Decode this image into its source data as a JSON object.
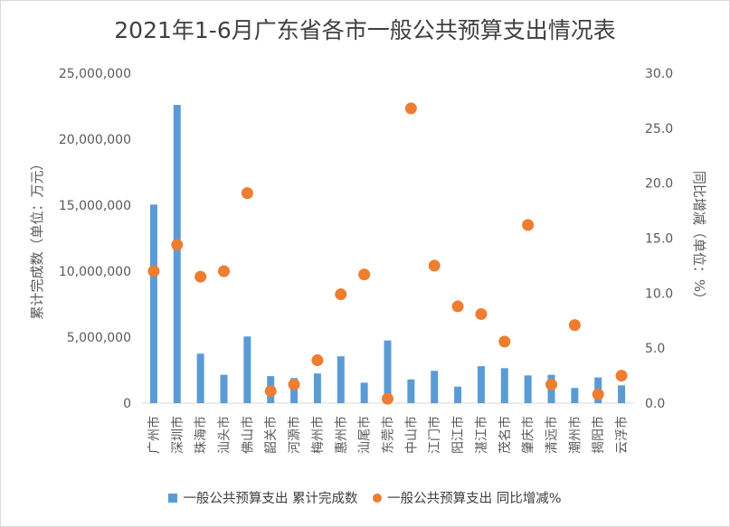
{
  "chart_data": {
    "type": "bar+scatter",
    "title": "2021年1-6月广东省各市一般公共预算支出情况表",
    "categories": [
      "广州市",
      "深圳市",
      "珠海市",
      "汕头市",
      "佛山市",
      "韶关市",
      "河源市",
      "梅州市",
      "惠州市",
      "汕尾市",
      "东莞市",
      "中山市",
      "江门市",
      "阳江市",
      "湛江市",
      "茂名市",
      "肇庆市",
      "清远市",
      "潮州市",
      "揭阳市",
      "云浮市"
    ],
    "series": [
      {
        "name": "一般公共预算支出 累计完成数",
        "type": "bar",
        "axis": "left",
        "color": "#5b9bd5",
        "values": [
          15050000,
          22600000,
          3750000,
          2150000,
          5050000,
          2050000,
          1900000,
          2250000,
          3550000,
          1550000,
          4750000,
          1800000,
          2450000,
          1250000,
          2800000,
          2650000,
          2100000,
          2150000,
          1150000,
          1950000,
          1350000
        ]
      },
      {
        "name": "一般公共预算支出 同比增减%",
        "type": "scatter",
        "axis": "right",
        "color": "#ed7d31",
        "values": [
          12.0,
          14.4,
          11.5,
          12.0,
          19.1,
          1.1,
          1.7,
          3.9,
          9.9,
          11.7,
          0.4,
          26.8,
          12.5,
          8.8,
          8.1,
          5.6,
          16.2,
          1.7,
          7.1,
          0.8,
          2.5
        ]
      }
    ],
    "ylabel": "累计完成数（单位：万元）",
    "y2label": "同比增减（单位：%）",
    "ylim": [
      0,
      25000000
    ],
    "y2lim": [
      0,
      30
    ],
    "yticks": [
      "0",
      "5,000,000",
      "10,000,000",
      "15,000,000",
      "20,000,000",
      "25,000,000"
    ],
    "y2ticks": [
      "0.0",
      "5.0",
      "10.0",
      "15.0",
      "20.0",
      "25.0",
      "30.0"
    ],
    "grid": false,
    "legend": "bottom"
  }
}
